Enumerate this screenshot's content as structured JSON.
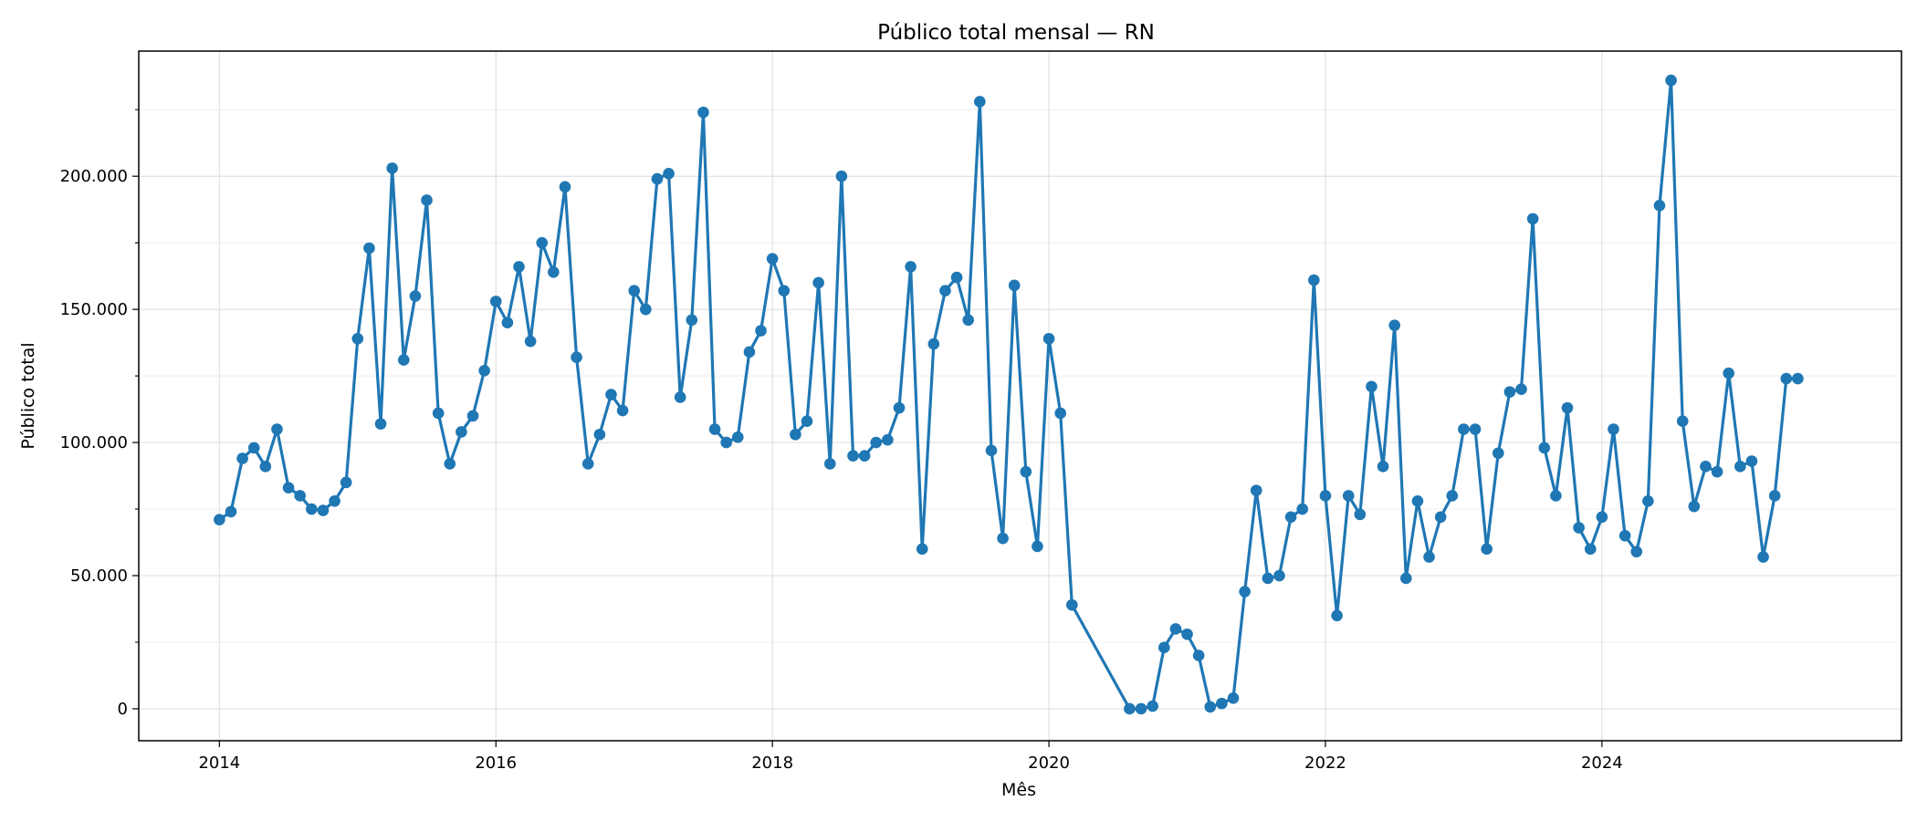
{
  "chart_data": {
    "type": "line",
    "title": "Público total mensal — RN",
    "xlabel": "Mês",
    "ylabel": "Público total",
    "x_ticks": [
      "2014",
      "2016",
      "2018",
      "2020",
      "2022",
      "2024"
    ],
    "y_ticks": [
      "0",
      "50.000",
      "100.000",
      "150.000",
      "200.000"
    ],
    "ylim": [
      -12000,
      247000
    ],
    "xlim": [
      "2013-06",
      "2026-03"
    ],
    "grid": true,
    "marker": "circle",
    "color": "#1f77b4",
    "series": [
      {
        "points": [
          [
            "2014-01",
            71000
          ],
          [
            "2014-02",
            74000
          ],
          [
            "2014-03",
            94000
          ],
          [
            "2014-04",
            98000
          ],
          [
            "2014-05",
            91000
          ],
          [
            "2014-06",
            105000
          ],
          [
            "2014-07",
            83000
          ],
          [
            "2014-08",
            80000
          ],
          [
            "2014-09",
            75000
          ],
          [
            "2014-10",
            74500
          ],
          [
            "2014-11",
            78000
          ],
          [
            "2014-12",
            85000
          ],
          [
            "2015-01",
            139000
          ],
          [
            "2015-02",
            173000
          ],
          [
            "2015-03",
            107000
          ],
          [
            "2015-04",
            203000
          ],
          [
            "2015-05",
            131000
          ],
          [
            "2015-06",
            155000
          ],
          [
            "2015-07",
            191000
          ],
          [
            "2015-08",
            111000
          ],
          [
            "2015-09",
            92000
          ],
          [
            "2015-10",
            104000
          ],
          [
            "2015-11",
            110000
          ],
          [
            "2015-12",
            127000
          ],
          [
            "2016-01",
            153000
          ],
          [
            "2016-02",
            145000
          ],
          [
            "2016-03",
            166000
          ],
          [
            "2016-04",
            138000
          ],
          [
            "2016-05",
            175000
          ],
          [
            "2016-06",
            164000
          ],
          [
            "2016-07",
            196000
          ],
          [
            "2016-08",
            132000
          ],
          [
            "2016-09",
            92000
          ],
          [
            "2016-10",
            103000
          ],
          [
            "2016-11",
            118000
          ],
          [
            "2016-12",
            112000
          ],
          [
            "2017-01",
            157000
          ],
          [
            "2017-02",
            150000
          ],
          [
            "2017-03",
            199000
          ],
          [
            "2017-04",
            201000
          ],
          [
            "2017-05",
            117000
          ],
          [
            "2017-06",
            146000
          ],
          [
            "2017-07",
            224000
          ],
          [
            "2017-08",
            105000
          ],
          [
            "2017-09",
            100000
          ],
          [
            "2017-10",
            102000
          ],
          [
            "2017-11",
            134000
          ],
          [
            "2017-12",
            142000
          ],
          [
            "2018-01",
            169000
          ],
          [
            "2018-02",
            157000
          ],
          [
            "2018-03",
            103000
          ],
          [
            "2018-04",
            108000
          ],
          [
            "2018-05",
            160000
          ],
          [
            "2018-06",
            92000
          ],
          [
            "2018-07",
            200000
          ],
          [
            "2018-08",
            95000
          ],
          [
            "2018-09",
            95000
          ],
          [
            "2018-10",
            100000
          ],
          [
            "2018-11",
            101000
          ],
          [
            "2018-12",
            113000
          ],
          [
            "2019-01",
            166000
          ],
          [
            "2019-02",
            60000
          ],
          [
            "2019-03",
            137000
          ],
          [
            "2019-04",
            157000
          ],
          [
            "2019-05",
            162000
          ],
          [
            "2019-06",
            146000
          ],
          [
            "2019-07",
            228000
          ],
          [
            "2019-08",
            97000
          ],
          [
            "2019-09",
            64000
          ],
          [
            "2019-10",
            159000
          ],
          [
            "2019-11",
            89000
          ],
          [
            "2019-12",
            61000
          ],
          [
            "2020-01",
            139000
          ],
          [
            "2020-02",
            111000
          ],
          [
            "2020-03",
            39000
          ],
          [
            "2020-08",
            0
          ],
          [
            "2020-09",
            0
          ],
          [
            "2020-10",
            1000
          ],
          [
            "2020-11",
            23000
          ],
          [
            "2020-12",
            30000
          ],
          [
            "2021-01",
            28000
          ],
          [
            "2021-02",
            20000
          ],
          [
            "2021-03",
            700
          ],
          [
            "2021-04",
            2000
          ],
          [
            "2021-05",
            4000
          ],
          [
            "2021-06",
            44000
          ],
          [
            "2021-07",
            82000
          ],
          [
            "2021-08",
            49000
          ],
          [
            "2021-09",
            50000
          ],
          [
            "2021-10",
            72000
          ],
          [
            "2021-11",
            75000
          ],
          [
            "2021-12",
            161000
          ],
          [
            "2022-01",
            80000
          ],
          [
            "2022-02",
            35000
          ],
          [
            "2022-03",
            80000
          ],
          [
            "2022-04",
            73000
          ],
          [
            "2022-05",
            121000
          ],
          [
            "2022-06",
            91000
          ],
          [
            "2022-07",
            144000
          ],
          [
            "2022-08",
            49000
          ],
          [
            "2022-09",
            78000
          ],
          [
            "2022-10",
            57000
          ],
          [
            "2022-11",
            72000
          ],
          [
            "2022-12",
            80000
          ],
          [
            "2023-01",
            105000
          ],
          [
            "2023-02",
            105000
          ],
          [
            "2023-03",
            60000
          ],
          [
            "2023-04",
            96000
          ],
          [
            "2023-05",
            119000
          ],
          [
            "2023-06",
            120000
          ],
          [
            "2023-07",
            184000
          ],
          [
            "2023-08",
            98000
          ],
          [
            "2023-09",
            80000
          ],
          [
            "2023-10",
            113000
          ],
          [
            "2023-11",
            68000
          ],
          [
            "2023-12",
            60000
          ],
          [
            "2024-01",
            72000
          ],
          [
            "2024-02",
            105000
          ],
          [
            "2024-03",
            65000
          ],
          [
            "2024-04",
            59000
          ],
          [
            "2024-05",
            78000
          ],
          [
            "2024-06",
            189000
          ],
          [
            "2024-07",
            236000
          ],
          [
            "2024-08",
            108000
          ],
          [
            "2024-09",
            76000
          ],
          [
            "2024-10",
            91000
          ],
          [
            "2024-11",
            89000
          ],
          [
            "2024-12",
            126000
          ],
          [
            "2025-01",
            91000
          ],
          [
            "2025-02",
            93000
          ],
          [
            "2025-03",
            57000
          ],
          [
            "2025-04",
            80000
          ],
          [
            "2025-05",
            124000
          ],
          [
            "2025-06",
            124000
          ]
        ]
      }
    ]
  }
}
